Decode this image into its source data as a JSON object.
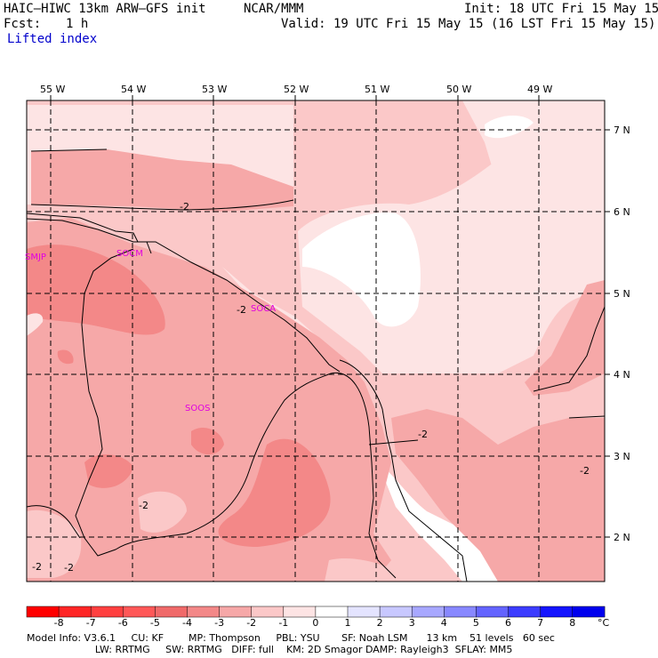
{
  "header": {
    "model_line": "HAIC—HIWC 13km ARW—GFS init",
    "org": "NCAR/MMM",
    "init": "Init: 18 UTC Fri 15 May 15",
    "fcst_label": "Fcst:",
    "fcst_value": "1 h",
    "valid": "Valid: 19 UTC Fri 15 May 15 (16 LST Fri 15 May 15)",
    "field_name": "Lifted index"
  },
  "map": {
    "longitude_labels": [
      "55 W",
      "54 W",
      "53 W",
      "52 W",
      "51 W",
      "50 W",
      "49 W"
    ],
    "latitude_labels": [
      "7 N",
      "6 N",
      "5 N",
      "4 N",
      "3 N",
      "2 N"
    ],
    "stations": [
      "SMJP",
      "SOCM",
      "SOCA",
      "SOOS"
    ],
    "contour_labels": [
      "-2",
      "-2",
      "-2",
      "-2",
      "-2",
      "-2",
      "-2"
    ]
  },
  "colorbar": {
    "tick_labels": [
      "-8",
      "-7",
      "-6",
      "-5",
      "-4",
      "-3",
      "-2",
      "-1",
      "0",
      "1",
      "2",
      "3",
      "4",
      "5",
      "6",
      "7",
      "8"
    ],
    "unit": "°C",
    "colors": [
      "#ff0000",
      "#ff2626",
      "#ff4040",
      "#ff5858",
      "#f06a6a",
      "#f38888",
      "#f6a8a8",
      "#fbc8c8",
      "#fde4e4",
      "#ffffff",
      "#e4e4ff",
      "#c8c8ff",
      "#a8a8ff",
      "#8888ff",
      "#6464ff",
      "#3c3cff",
      "#1414ff",
      "#0000ee"
    ]
  },
  "footer": {
    "line1": "Model Info: V3.6.1     CU: KF        MP: Thompson     PBL: YSU       SF: Noah LSM      13 km    51 levels   60 sec",
    "line2": "                      LW: RRTMG     SW: RRTMG   DIFF: full    KM: 2D Smagor DAMP: Rayleigh3  SFLAY: MM5"
  }
}
